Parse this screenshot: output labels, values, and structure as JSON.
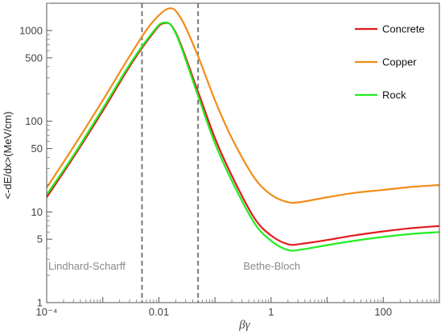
{
  "chart_data": {
    "type": "line",
    "xlabel": "βγ",
    "ylabel": "<-dE/dx>(MeV/cm)",
    "xscale": "log",
    "yscale": "log",
    "xlim": [
      0.0001,
      1000
    ],
    "ylim": [
      1,
      2000
    ],
    "x_ticks": [
      {
        "value": 0.0001,
        "label": "10⁻⁴"
      },
      {
        "value": 0.01,
        "label": "0.01"
      },
      {
        "value": 1,
        "label": "1"
      },
      {
        "value": 100,
        "label": "100"
      }
    ],
    "y_ticks": [
      {
        "value": 1,
        "label": "1"
      },
      {
        "value": 5,
        "label": "5"
      },
      {
        "value": 10,
        "label": "10"
      },
      {
        "value": 50,
        "label": "50"
      },
      {
        "value": 100,
        "label": "100"
      },
      {
        "value": 500,
        "label": "500"
      },
      {
        "value": 1000,
        "label": "1000"
      }
    ],
    "legend_position": "top-right",
    "series": [
      {
        "name": "Concrete",
        "color": "#e31a1c",
        "points": [
          [
            0.0001,
            14.5
          ],
          [
            0.0003,
            40
          ],
          [
            0.001,
            130
          ],
          [
            0.003,
            400
          ],
          [
            0.007,
            850
          ],
          [
            0.012,
            1200
          ],
          [
            0.02,
            950
          ],
          [
            0.05,
            210
          ],
          [
            0.1,
            65
          ],
          [
            0.2,
            25
          ],
          [
            0.5,
            8.6
          ],
          [
            1,
            5.5
          ],
          [
            2,
            4.4
          ],
          [
            3.5,
            4.45
          ],
          [
            10,
            4.9
          ],
          [
            30,
            5.5
          ],
          [
            100,
            6.1
          ],
          [
            300,
            6.6
          ],
          [
            1000,
            7.0
          ]
        ]
      },
      {
        "name": "Copper",
        "color": "#f28c1a",
        "points": [
          [
            0.0001,
            18.5
          ],
          [
            0.0003,
            52
          ],
          [
            0.001,
            170
          ],
          [
            0.003,
            520
          ],
          [
            0.007,
            1150
          ],
          [
            0.015,
            1750
          ],
          [
            0.025,
            1350
          ],
          [
            0.05,
            520
          ],
          [
            0.1,
            170
          ],
          [
            0.2,
            65
          ],
          [
            0.5,
            24
          ],
          [
            1,
            15.5
          ],
          [
            2,
            12.8
          ],
          [
            3.5,
            12.9
          ],
          [
            10,
            14.5
          ],
          [
            30,
            16.2
          ],
          [
            100,
            17.5
          ],
          [
            300,
            18.8
          ],
          [
            1000,
            19.8
          ]
        ]
      },
      {
        "name": "Rock",
        "color": "#22ee22",
        "points": [
          [
            0.0001,
            15.5
          ],
          [
            0.0003,
            42
          ],
          [
            0.001,
            138
          ],
          [
            0.003,
            420
          ],
          [
            0.007,
            880
          ],
          [
            0.012,
            1220
          ],
          [
            0.02,
            930
          ],
          [
            0.05,
            190
          ],
          [
            0.1,
            57
          ],
          [
            0.2,
            22
          ],
          [
            0.5,
            7.6
          ],
          [
            1,
            4.8
          ],
          [
            2,
            3.8
          ],
          [
            3.5,
            3.85
          ],
          [
            10,
            4.3
          ],
          [
            30,
            4.8
          ],
          [
            100,
            5.3
          ],
          [
            300,
            5.7
          ],
          [
            1000,
            6.0
          ]
        ]
      }
    ],
    "vertical_lines": [
      {
        "x": 0.005,
        "style": "dashed"
      },
      {
        "x": 0.05,
        "style": "dashed"
      }
    ],
    "annotations": [
      {
        "text": "Lindhard-Scharff",
        "x": 0.0001,
        "y": 2.5
      },
      {
        "text": "Bethe-Bloch",
        "x": 0.3,
        "y": 2.5
      }
    ]
  }
}
